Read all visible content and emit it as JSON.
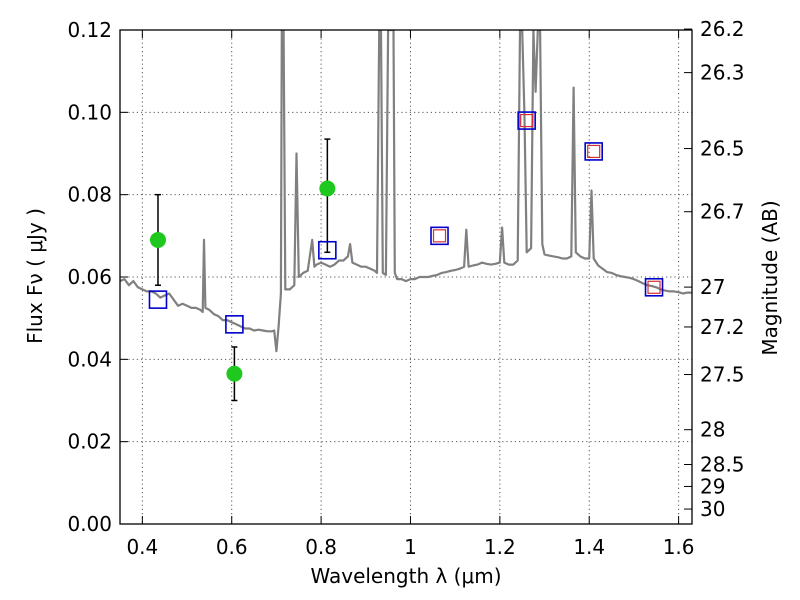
{
  "chart_data": {
    "type": "line",
    "title": "",
    "xlabel": "Wavelength  λ (μm)",
    "ylabel": "Flux  Fν  ( μJy )",
    "y2label": "Magnitude (AB)",
    "xlim": [
      0.35,
      1.63
    ],
    "ylim": [
      0.0,
      0.12
    ],
    "grid": true,
    "x_ticks": [
      {
        "value": 0.4,
        "label": "0.4"
      },
      {
        "value": 0.6,
        "label": "0.6"
      },
      {
        "value": 0.8,
        "label": "0.8"
      },
      {
        "value": 1.0,
        "label": "1"
      },
      {
        "value": 1.2,
        "label": "1.2"
      },
      {
        "value": 1.4,
        "label": "1.4"
      },
      {
        "value": 1.6,
        "label": "1.6"
      }
    ],
    "y_ticks": [
      {
        "value": 0.0,
        "label": "0.00"
      },
      {
        "value": 0.02,
        "label": "0.02"
      },
      {
        "value": 0.04,
        "label": "0.04"
      },
      {
        "value": 0.06,
        "label": "0.06"
      },
      {
        "value": 0.08,
        "label": "0.08"
      },
      {
        "value": 0.1,
        "label": "0.10"
      },
      {
        "value": 0.12,
        "label": "0.12"
      }
    ],
    "mag_ticks": [
      {
        "value": 26.2,
        "label": "26.2"
      },
      {
        "value": 26.3,
        "label": "26.3"
      },
      {
        "value": 26.5,
        "label": "26.5"
      },
      {
        "value": 26.7,
        "label": "26.7"
      },
      {
        "value": 27.0,
        "label": "27"
      },
      {
        "value": 27.2,
        "label": "27.2"
      },
      {
        "value": 27.5,
        "label": "27.5"
      },
      {
        "value": 28.0,
        "label": "28"
      },
      {
        "value": 28.5,
        "label": "28.5"
      },
      {
        "value": 29.0,
        "label": "29"
      },
      {
        "value": 30.0,
        "label": "30"
      }
    ],
    "colors": {
      "spectrum": "#808080",
      "observed": "#1ec81e",
      "model_box": "#0000cc",
      "model_inner": "#d43030",
      "errorbar": "#000000",
      "axes": "#000000"
    },
    "spectrum": [
      [
        0.35,
        0.059
      ],
      [
        0.36,
        0.0595
      ],
      [
        0.37,
        0.058
      ],
      [
        0.38,
        0.059
      ],
      [
        0.39,
        0.0575
      ],
      [
        0.4,
        0.057
      ],
      [
        0.41,
        0.0565
      ],
      [
        0.42,
        0.0565
      ],
      [
        0.43,
        0.056
      ],
      [
        0.44,
        0.055
      ],
      [
        0.45,
        0.0555
      ],
      [
        0.46,
        0.056
      ],
      [
        0.47,
        0.0545
      ],
      [
        0.48,
        0.053
      ],
      [
        0.49,
        0.0535
      ],
      [
        0.5,
        0.053
      ],
      [
        0.51,
        0.0525
      ],
      [
        0.52,
        0.0525
      ],
      [
        0.53,
        0.052
      ],
      [
        0.535,
        0.0515
      ],
      [
        0.538,
        0.069
      ],
      [
        0.541,
        0.0525
      ],
      [
        0.55,
        0.052
      ],
      [
        0.56,
        0.051
      ],
      [
        0.57,
        0.0505
      ],
      [
        0.58,
        0.0495
      ],
      [
        0.59,
        0.0495
      ],
      [
        0.6,
        0.049
      ],
      [
        0.61,
        0.0485
      ],
      [
        0.62,
        0.048
      ],
      [
        0.63,
        0.0475
      ],
      [
        0.64,
        0.0475
      ],
      [
        0.65,
        0.047
      ],
      [
        0.66,
        0.0472
      ],
      [
        0.67,
        0.047
      ],
      [
        0.68,
        0.0468
      ],
      [
        0.69,
        0.0468
      ],
      [
        0.695,
        0.047
      ],
      [
        0.7,
        0.042
      ],
      [
        0.705,
        0.048
      ],
      [
        0.71,
        0.056
      ],
      [
        0.712,
        0.12
      ],
      [
        0.716,
        0.12
      ],
      [
        0.72,
        0.057
      ],
      [
        0.73,
        0.057
      ],
      [
        0.74,
        0.058
      ],
      [
        0.745,
        0.09
      ],
      [
        0.75,
        0.06
      ],
      [
        0.76,
        0.061
      ],
      [
        0.77,
        0.0615
      ],
      [
        0.78,
        0.069
      ],
      [
        0.785,
        0.0625
      ],
      [
        0.79,
        0.063
      ],
      [
        0.8,
        0.0635
      ],
      [
        0.81,
        0.063
      ],
      [
        0.82,
        0.0625
      ],
      [
        0.83,
        0.063
      ],
      [
        0.84,
        0.064
      ],
      [
        0.85,
        0.064
      ],
      [
        0.86,
        0.065
      ],
      [
        0.865,
        0.068
      ],
      [
        0.87,
        0.0635
      ],
      [
        0.88,
        0.063
      ],
      [
        0.89,
        0.0625
      ],
      [
        0.9,
        0.0625
      ],
      [
        0.91,
        0.062
      ],
      [
        0.92,
        0.0615
      ],
      [
        0.925,
        0.061
      ],
      [
        0.93,
        0.12
      ],
      [
        0.934,
        0.12
      ],
      [
        0.938,
        0.061
      ],
      [
        0.945,
        0.0605
      ],
      [
        0.95,
        0.12
      ],
      [
        0.958,
        0.12
      ],
      [
        0.962,
        0.12
      ],
      [
        0.965,
        0.061
      ],
      [
        0.97,
        0.0595
      ],
      [
        0.98,
        0.0595
      ],
      [
        0.99,
        0.059
      ],
      [
        1.0,
        0.0595
      ],
      [
        1.01,
        0.0595
      ],
      [
        1.02,
        0.06
      ],
      [
        1.03,
        0.06
      ],
      [
        1.04,
        0.06
      ],
      [
        1.05,
        0.0603
      ],
      [
        1.06,
        0.0605
      ],
      [
        1.07,
        0.061
      ],
      [
        1.08,
        0.0612
      ],
      [
        1.09,
        0.0615
      ],
      [
        1.1,
        0.0617
      ],
      [
        1.11,
        0.062
      ],
      [
        1.12,
        0.0625
      ],
      [
        1.125,
        0.0715
      ],
      [
        1.13,
        0.0625
      ],
      [
        1.14,
        0.0628
      ],
      [
        1.15,
        0.063
      ],
      [
        1.16,
        0.0635
      ],
      [
        1.17,
        0.0632
      ],
      [
        1.18,
        0.063
      ],
      [
        1.19,
        0.0632
      ],
      [
        1.2,
        0.0635
      ],
      [
        1.205,
        0.072
      ],
      [
        1.21,
        0.0635
      ],
      [
        1.22,
        0.063
      ],
      [
        1.23,
        0.063
      ],
      [
        1.24,
        0.064
      ],
      [
        1.245,
        0.12
      ],
      [
        1.25,
        0.12
      ],
      [
        1.255,
        0.1
      ],
      [
        1.26,
        0.066
      ],
      [
        1.27,
        0.067
      ],
      [
        1.275,
        0.12
      ],
      [
        1.28,
        0.105
      ],
      [
        1.285,
        0.12
      ],
      [
        1.29,
        0.12
      ],
      [
        1.295,
        0.068
      ],
      [
        1.3,
        0.0655
      ],
      [
        1.31,
        0.0652
      ],
      [
        1.32,
        0.065
      ],
      [
        1.33,
        0.0648
      ],
      [
        1.34,
        0.0645
      ],
      [
        1.35,
        0.0645
      ],
      [
        1.36,
        0.065
      ],
      [
        1.365,
        0.106
      ],
      [
        1.37,
        0.066
      ],
      [
        1.38,
        0.065
      ],
      [
        1.39,
        0.0645
      ],
      [
        1.4,
        0.0645
      ],
      [
        1.405,
        0.081
      ],
      [
        1.41,
        0.0645
      ],
      [
        1.42,
        0.0628
      ],
      [
        1.43,
        0.062
      ],
      [
        1.44,
        0.0612
      ],
      [
        1.45,
        0.061
      ],
      [
        1.46,
        0.0605
      ],
      [
        1.47,
        0.0602
      ],
      [
        1.48,
        0.06
      ],
      [
        1.49,
        0.0598
      ],
      [
        1.5,
        0.0595
      ],
      [
        1.51,
        0.059
      ],
      [
        1.52,
        0.0585
      ],
      [
        1.53,
        0.058
      ],
      [
        1.54,
        0.0578
      ],
      [
        1.55,
        0.0575
      ],
      [
        1.56,
        0.057
      ],
      [
        1.57,
        0.0567
      ],
      [
        1.58,
        0.0565
      ],
      [
        1.59,
        0.0565
      ],
      [
        1.6,
        0.0563
      ],
      [
        1.61,
        0.056
      ],
      [
        1.62,
        0.0562
      ],
      [
        1.63,
        0.0562
      ]
    ],
    "observed": [
      {
        "x": 0.435,
        "y": 0.069,
        "err_low": 0.058,
        "err_high": 0.08
      },
      {
        "x": 0.606,
        "y": 0.0365,
        "err_low": 0.03,
        "err_high": 0.043
      },
      {
        "x": 0.814,
        "y": 0.0815,
        "err_low": 0.066,
        "err_high": 0.0935
      }
    ],
    "model_blue": [
      {
        "x": 0.435,
        "y": 0.0545
      },
      {
        "x": 0.606,
        "y": 0.0485
      },
      {
        "x": 0.814,
        "y": 0.0665
      },
      {
        "x": 1.065,
        "y": 0.07
      },
      {
        "x": 1.26,
        "y": 0.098
      },
      {
        "x": 1.41,
        "y": 0.0905
      },
      {
        "x": 1.545,
        "y": 0.0575
      }
    ],
    "model_red": [
      {
        "x": 1.065,
        "y": 0.07
      },
      {
        "x": 1.26,
        "y": 0.098
      },
      {
        "x": 1.41,
        "y": 0.0905
      },
      {
        "x": 1.545,
        "y": 0.0575
      }
    ]
  }
}
